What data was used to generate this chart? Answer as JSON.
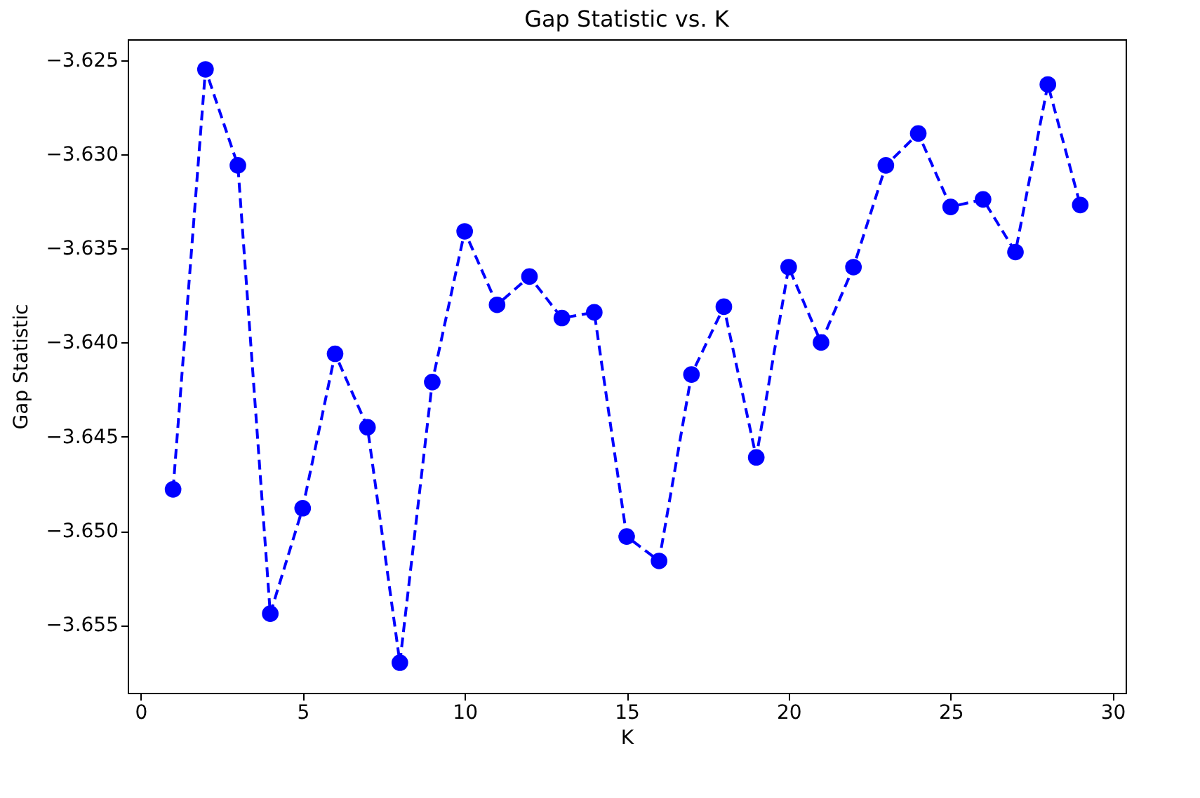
{
  "chart_data": {
    "type": "line",
    "title": "Gap Statistic vs. K",
    "xlabel": "K",
    "ylabel": "Gap Statistic",
    "x": [
      1,
      2,
      3,
      4,
      5,
      6,
      7,
      8,
      9,
      10,
      11,
      12,
      13,
      14,
      15,
      16,
      17,
      18,
      19,
      20,
      21,
      22,
      23,
      24,
      25,
      26,
      27,
      28,
      29
    ],
    "series": [
      {
        "color": "#0000ff",
        "values": [
          -3.6478,
          -3.6255,
          -3.6306,
          -3.6544,
          -3.6488,
          -3.6406,
          -3.6445,
          -3.657,
          -3.6421,
          -3.6341,
          -3.638,
          -3.6365,
          -3.6387,
          -3.6384,
          -3.6503,
          -3.6516,
          -3.6417,
          -3.6381,
          -3.6461,
          -3.636,
          -3.64,
          -3.636,
          -3.6306,
          -3.6289,
          -3.6328,
          -3.6324,
          -3.6352,
          -3.6263,
          -3.6327
        ]
      }
    ],
    "xlim": [
      -0.4,
      30.4
    ],
    "ylim": [
      -3.6586,
      -3.6239
    ],
    "xticks": [
      0,
      5,
      10,
      15,
      20,
      25,
      30
    ],
    "yticks": [
      -3.655,
      {
        "value": -3.65,
        "label": "−3.650"
      },
      -3.645,
      {
        "value": -3.64,
        "label": "−3.640"
      },
      -3.635,
      {
        "value": -3.63,
        "label": "−3.630"
      },
      -3.625
    ],
    "grid": false,
    "marker": "circle",
    "line_style": "dashed"
  }
}
